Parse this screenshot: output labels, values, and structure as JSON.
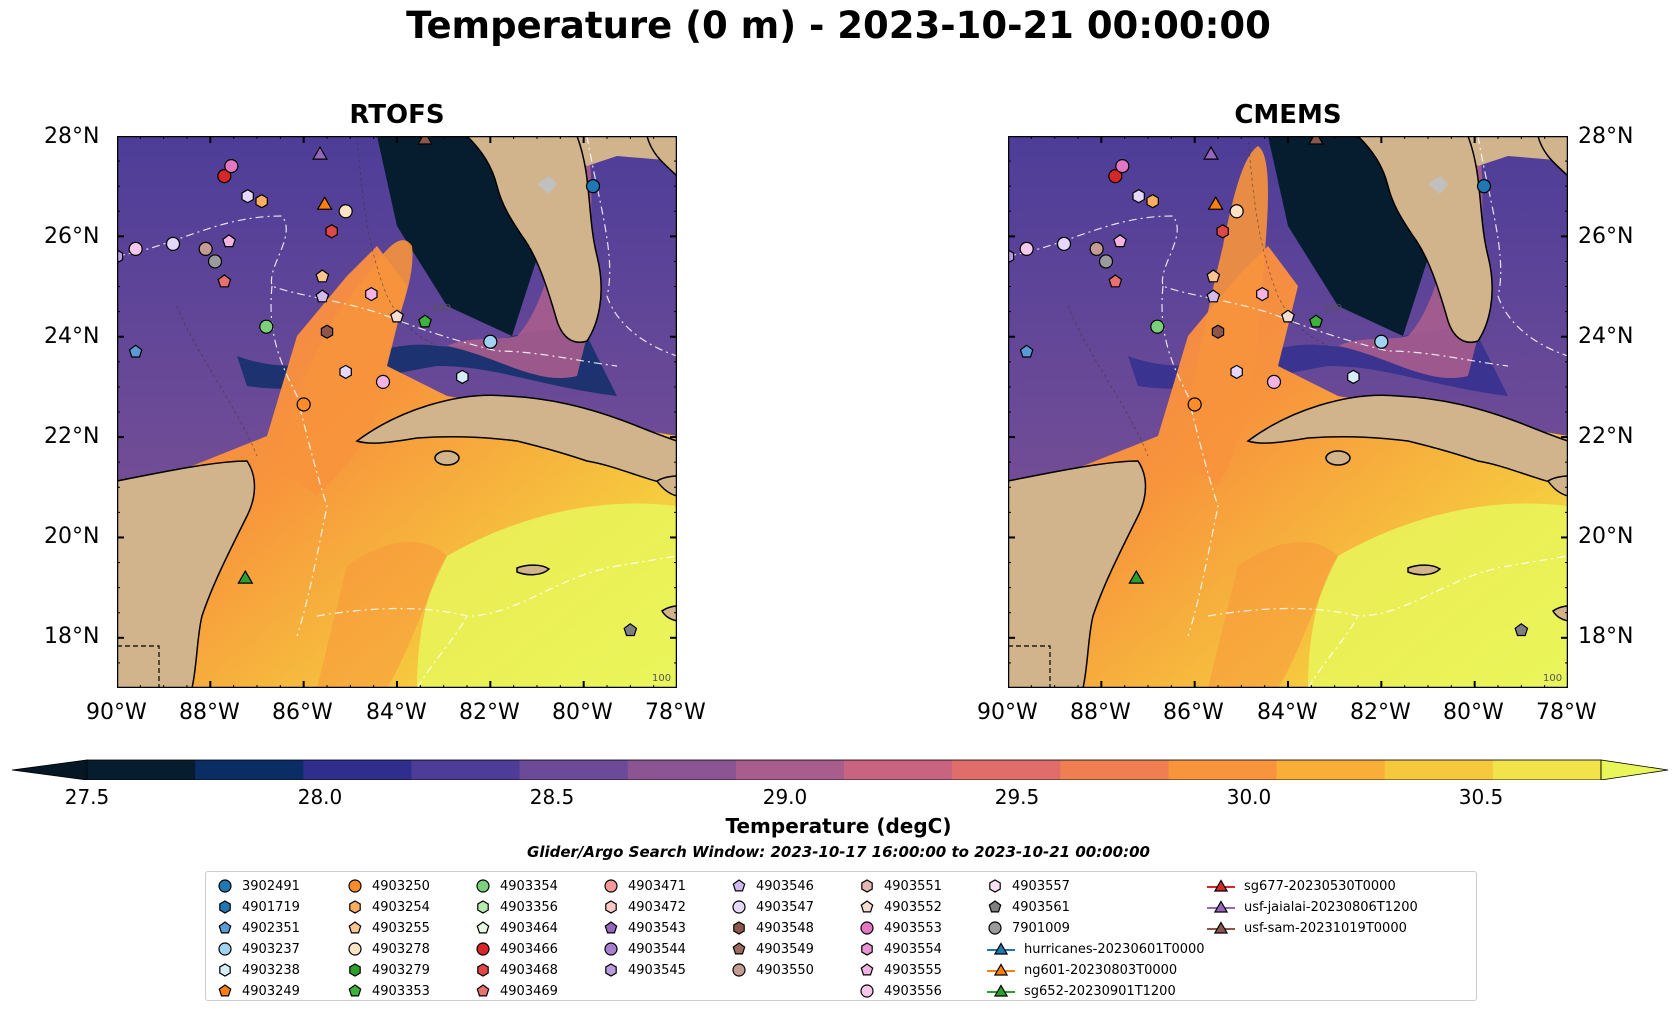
{
  "title": "Temperature (0 m) - 2023-10-21 00:00:00",
  "panels": [
    {
      "title": "RTOFS"
    },
    {
      "title": "CMEMS"
    }
  ],
  "lat_ticks": [
    "28°N",
    "26°N",
    "24°N",
    "22°N",
    "20°N",
    "18°N"
  ],
  "lon_ticks": [
    "90°W",
    "88°W",
    "86°W",
    "84°W",
    "82°W",
    "80°W",
    "78°W"
  ],
  "contour_label": "100",
  "colorbar": {
    "label": "Temperature (degC)",
    "ticks": [
      "27.5",
      "28.0",
      "28.5",
      "29.0",
      "29.5",
      "30.0",
      "30.5"
    ],
    "colors": [
      "#061d2f",
      "#0b2d66",
      "#302e8d",
      "#4d3d98",
      "#6b4a97",
      "#8a5592",
      "#a95d8d",
      "#c96480",
      "#e06d69",
      "#ef7e50",
      "#f7943c",
      "#f9ae38",
      "#f6c83e",
      "#f1e349"
    ],
    "extend_low": "#051725",
    "extend_high": "#e9f65a"
  },
  "search_window": "Glider/Argo Search Window: 2023-10-17 16:00:00 to 2023-10-21 00:00:00",
  "legend": [
    {
      "label": "3902491",
      "marker": "circle",
      "color": "#1f77b4"
    },
    {
      "label": "4901719",
      "marker": "hexagon",
      "color": "#1f77b4"
    },
    {
      "label": "4902351",
      "marker": "pentagon",
      "color": "#5b9bd5"
    },
    {
      "label": "4903237",
      "marker": "circle",
      "color": "#9fd3f0"
    },
    {
      "label": "4903238",
      "marker": "hexagon",
      "color": "#d7eefa"
    },
    {
      "label": "4903249",
      "marker": "pentagon",
      "color": "#ff7f0e"
    },
    {
      "label": "4903250",
      "marker": "circle",
      "color": "#ff8c2a"
    },
    {
      "label": "4903254",
      "marker": "hexagon",
      "color": "#ffae60"
    },
    {
      "label": "4903255",
      "marker": "pentagon",
      "color": "#ffc590"
    },
    {
      "label": "4903278",
      "marker": "circle",
      "color": "#ffe3c4"
    },
    {
      "label": "4903279",
      "marker": "hexagon",
      "color": "#2ca02c"
    },
    {
      "label": "4903353",
      "marker": "pentagon",
      "color": "#3cb33c"
    },
    {
      "label": "4903354",
      "marker": "circle",
      "color": "#7bd07b"
    },
    {
      "label": "4903356",
      "marker": "hexagon",
      "color": "#b6ecb0"
    },
    {
      "label": "4903464",
      "marker": "pentagon",
      "color": "#e6fbe0"
    },
    {
      "label": "4903466",
      "marker": "circle",
      "color": "#d62728"
    },
    {
      "label": "4903468",
      "marker": "hexagon",
      "color": "#e04848"
    },
    {
      "label": "4903469",
      "marker": "pentagon",
      "color": "#ea7070"
    },
    {
      "label": "4903471",
      "marker": "circle",
      "color": "#f49a98"
    },
    {
      "label": "4903472",
      "marker": "hexagon",
      "color": "#fbc8c4"
    },
    {
      "label": "4903543",
      "marker": "pentagon",
      "color": "#9467bd"
    },
    {
      "label": "4903544",
      "marker": "circle",
      "color": "#a77fd0"
    },
    {
      "label": "4903545",
      "marker": "hexagon",
      "color": "#bb9be0"
    },
    {
      "label": "4903546",
      "marker": "pentagon",
      "color": "#d2baf0"
    },
    {
      "label": "4903547",
      "marker": "circle",
      "color": "#e6d8fa"
    },
    {
      "label": "4903548",
      "marker": "hexagon",
      "color": "#8c564b"
    },
    {
      "label": "4903549",
      "marker": "pentagon",
      "color": "#9c6a5e"
    },
    {
      "label": "4903550",
      "marker": "circle",
      "color": "#c49c94"
    },
    {
      "label": "4903551",
      "marker": "hexagon",
      "color": "#e3b8b0"
    },
    {
      "label": "4903552",
      "marker": "pentagon",
      "color": "#f7dcd2"
    },
    {
      "label": "4903553",
      "marker": "circle",
      "color": "#e377c2"
    },
    {
      "label": "4903554",
      "marker": "hexagon",
      "color": "#ec94d2"
    },
    {
      "label": "4903555",
      "marker": "pentagon",
      "color": "#f4b3e2"
    },
    {
      "label": "4903556",
      "marker": "circle",
      "color": "#f8c8ec"
    },
    {
      "label": "4903557",
      "marker": "hexagon",
      "color": "#fbe0f4"
    },
    {
      "label": "4903561",
      "marker": "pentagon",
      "color": "#7f7f7f"
    },
    {
      "label": "7901009",
      "marker": "circle",
      "color": "#9b9b9b"
    },
    {
      "label": "hurricanes-20230601T0000",
      "marker": "triangle-line",
      "color": "#1f77b4"
    },
    {
      "label": "ng601-20230803T0000",
      "marker": "triangle-line",
      "color": "#ff7f0e"
    },
    {
      "label": "sg652-20230901T1200",
      "marker": "triangle-line",
      "color": "#2ca02c"
    },
    {
      "label": "sg677-20230530T0000",
      "marker": "triangle-line",
      "color": "#d62728"
    },
    {
      "label": "usf-jaialai-20230806T1200",
      "marker": "triangle-line",
      "color": "#9467bd"
    },
    {
      "label": "usf-sam-20231019T0000",
      "marker": "triangle-line",
      "color": "#8c564b"
    }
  ],
  "map_extent": {
    "lon": [
      -90,
      -78
    ],
    "lat": [
      17,
      28
    ]
  },
  "observations": [
    {
      "lon": -79.8,
      "lat": 27.0,
      "marker": "circle",
      "color": "#1f77b4"
    },
    {
      "lon": -90.0,
      "lat": 25.6,
      "marker": "hexagon",
      "color": "#bb9be0"
    },
    {
      "lon": -89.6,
      "lat": 23.7,
      "marker": "pentagon",
      "color": "#5b9bd5"
    },
    {
      "lon": -82.0,
      "lat": 23.9,
      "marker": "circle",
      "color": "#9fd3f0"
    },
    {
      "lon": -82.6,
      "lat": 23.2,
      "marker": "hexagon",
      "color": "#d7eefa"
    },
    {
      "lon": -87.7,
      "lat": 25.1,
      "marker": "pentagon",
      "color": "#ea7070"
    },
    {
      "lon": -86.0,
      "lat": 22.65,
      "marker": "circle",
      "color": "#ff8c2a"
    },
    {
      "lon": -86.9,
      "lat": 26.7,
      "marker": "hexagon",
      "color": "#ffae60"
    },
    {
      "lon": -85.6,
      "lat": 25.2,
      "marker": "pentagon",
      "color": "#ffc590"
    },
    {
      "lon": -85.1,
      "lat": 26.5,
      "marker": "circle",
      "color": "#ffe3c4"
    },
    {
      "lon": -85.5,
      "lat": 24.1,
      "marker": "hexagon",
      "color": "#8c564b"
    },
    {
      "lon": -83.4,
      "lat": 24.3,
      "marker": "pentagon",
      "color": "#3cb33c"
    },
    {
      "lon": -86.8,
      "lat": 24.2,
      "marker": "circle",
      "color": "#7bd07b"
    },
    {
      "lon": -85.1,
      "lat": 23.3,
      "marker": "hexagon",
      "color": "#e6d8fa"
    },
    {
      "lon": -84.0,
      "lat": 24.4,
      "marker": "pentagon",
      "color": "#f7dcd2"
    },
    {
      "lon": -87.7,
      "lat": 27.2,
      "marker": "circle",
      "color": "#d62728"
    },
    {
      "lon": -85.4,
      "lat": 26.1,
      "marker": "hexagon",
      "color": "#e04848"
    },
    {
      "lon": -84.3,
      "lat": 23.1,
      "marker": "circle",
      "color": "#f4b3e2"
    },
    {
      "lon": -89.6,
      "lat": 25.75,
      "marker": "circle",
      "color": "#f8c8ec"
    },
    {
      "lon": -84.55,
      "lat": 24.85,
      "marker": "hexagon",
      "color": "#f4b3e2"
    },
    {
      "lon": -87.6,
      "lat": 25.9,
      "marker": "pentagon",
      "color": "#f4b3e2"
    },
    {
      "lon": -85.6,
      "lat": 24.8,
      "marker": "pentagon",
      "color": "#d2baf0"
    },
    {
      "lon": -87.55,
      "lat": 27.4,
      "marker": "circle",
      "color": "#e377c2"
    },
    {
      "lon": -87.2,
      "lat": 26.8,
      "marker": "hexagon",
      "color": "#e6d8fa"
    },
    {
      "lon": -88.8,
      "lat": 25.85,
      "marker": "circle",
      "color": "#e6d8fa"
    },
    {
      "lon": -88.1,
      "lat": 25.75,
      "marker": "circle",
      "color": "#c49c94"
    },
    {
      "lon": -87.9,
      "lat": 25.5,
      "marker": "circle",
      "color": "#9b9b9b"
    },
    {
      "lon": -79.0,
      "lat": 18.15,
      "marker": "pentagon",
      "color": "#7f7f7f"
    },
    {
      "lon": -85.55,
      "lat": 26.65,
      "marker": "triangle",
      "color": "#ff7f0e"
    },
    {
      "lon": -87.25,
      "lat": 19.2,
      "marker": "triangle",
      "color": "#2ca02c"
    },
    {
      "lon": -85.65,
      "lat": 27.65,
      "marker": "triangle",
      "color": "#9467bd"
    },
    {
      "lon": -83.4,
      "lat": 27.95,
      "marker": "triangle",
      "color": "#8c564b"
    }
  ]
}
